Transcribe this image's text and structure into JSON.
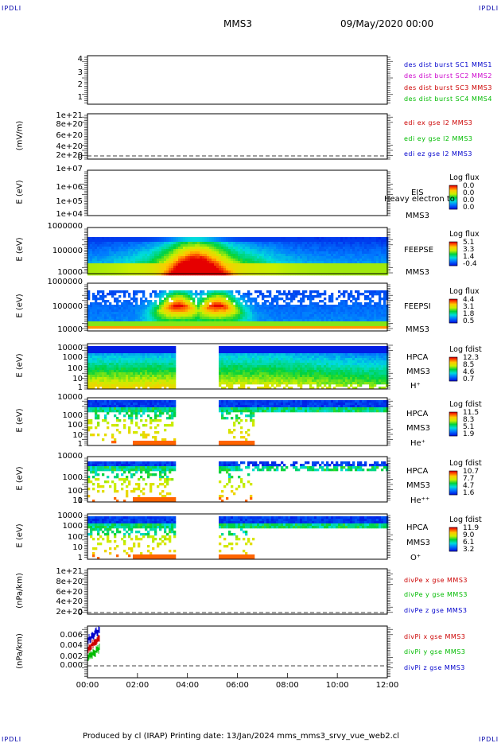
{
  "corners": {
    "tl": "IPDLI",
    "tr": "IPDLI",
    "bl": "IPDLI",
    "br": "IPDLI"
  },
  "header": {
    "title": "MMS3",
    "date": "09/May/2020 00:00"
  },
  "footer": {
    "text": "Produced by cl (IRAP)   Printing date: 13/Jan/2024   mms_mms3_srvy_vue_web2.cl"
  },
  "chart_data": [
    {
      "type": "line",
      "ylabel": "",
      "yticks": [
        "4",
        "3",
        "2",
        "1"
      ],
      "series": [
        {
          "name": "des dist burst SC1 MMS1",
          "color": "#0000cc",
          "values": []
        },
        {
          "name": "des dist burst SC2 MMS2",
          "color": "#cc00cc",
          "values": []
        },
        {
          "name": "des dist burst SC3 MMS3",
          "color": "#cc0000",
          "values": []
        },
        {
          "name": "des dist burst SC4 MMS4",
          "color": "#00bb00",
          "values": []
        }
      ]
    },
    {
      "type": "line",
      "ylabel": "(mV/m)",
      "yticks": [
        "1e+21",
        "8e+20",
        "6e+20",
        "4e+20",
        "2e+20",
        "0"
      ],
      "series": [
        {
          "name": "edi ex gse l2 MMS3",
          "color": "#cc0000",
          "values": []
        },
        {
          "name": "edi ey gse l2 MMS3",
          "color": "#00bb00",
          "values": []
        },
        {
          "name": "edi ez gse l2 MMS3",
          "color": "#0000cc",
          "values": []
        }
      ]
    },
    {
      "type": "heatmap",
      "ylabel": "E (eV)",
      "yticks": [
        "1e+07",
        "1e+06",
        "1e+05",
        "1e+04"
      ],
      "side": [
        "EIS",
        "Heavy electron to",
        "MMS3"
      ],
      "cb_title": "Log flux",
      "cb_values": [
        "0.0",
        "0.0",
        "0.0",
        "0.0"
      ]
    },
    {
      "type": "heatmap",
      "ylabel": "E (eV)",
      "yticks": [
        "1000000",
        "100000",
        "10000"
      ],
      "side": [
        "FEEPSE",
        "MMS3"
      ],
      "cb_title": "Log flux",
      "cb_values": [
        "5.1",
        "3.3",
        "1.4",
        "-0.4"
      ]
    },
    {
      "type": "heatmap",
      "ylabel": "E (eV)",
      "yticks": [
        "1000000",
        "100000",
        "10000"
      ],
      "side": [
        "FEEPSI",
        "MMS3"
      ],
      "cb_title": "Log flux",
      "cb_values": [
        "4.4",
        "3.1",
        "1.8",
        "0.5"
      ]
    },
    {
      "type": "heatmap",
      "ylabel": "E (eV)",
      "yticks": [
        "10000",
        "1000",
        "100",
        "10",
        "1"
      ],
      "side": [
        "HPCA",
        "MMS3",
        "H⁺"
      ],
      "cb_title": "Log fdist",
      "cb_values": [
        "12.3",
        "8.5",
        "4.6",
        "0.7"
      ]
    },
    {
      "type": "heatmap",
      "ylabel": "E (eV)",
      "yticks": [
        "10000",
        "1000",
        "100",
        "10",
        "1"
      ],
      "side": [
        "HPCA",
        "MMS3",
        "He⁺"
      ],
      "cb_title": "Log fdist",
      "cb_values": [
        "11.5",
        "8.3",
        "5.1",
        "1.9"
      ]
    },
    {
      "type": "heatmap",
      "ylabel": "E (eV)",
      "yticks": [
        "10000",
        "1000",
        "100",
        "10",
        "1"
      ],
      "side": [
        "HPCA",
        "MMS3",
        "He⁺⁺"
      ],
      "cb_title": "Log fdist",
      "cb_values": [
        "10.7",
        "7.7",
        "4.7",
        "1.6"
      ]
    },
    {
      "type": "heatmap",
      "ylabel": "E (eV)",
      "yticks": [
        "10000",
        "1000",
        "100",
        "10",
        "1"
      ],
      "side": [
        "HPCA",
        "MMS3",
        "O⁺"
      ],
      "cb_title": "Log fdist",
      "cb_values": [
        "11.9",
        "9.0",
        "6.1",
        "3.2"
      ]
    },
    {
      "type": "line",
      "ylabel": "(nPa/km)",
      "yticks": [
        "1e+21",
        "8e+20",
        "6e+20",
        "4e+20",
        "2e+20",
        "0"
      ],
      "series": [
        {
          "name": "divPe x gse MMS3",
          "color": "#cc0000",
          "values": []
        },
        {
          "name": "divPe y gse MMS3",
          "color": "#00bb00",
          "values": []
        },
        {
          "name": "divPe z gse MMS3",
          "color": "#0000cc",
          "values": []
        }
      ]
    },
    {
      "type": "line",
      "ylabel": "(nPa/km)",
      "yticks": [
        "0.006",
        "0.004",
        "0.002",
        "0.000"
      ],
      "series": [
        {
          "name": "divPi x gse MMS3",
          "color": "#cc0000",
          "values": []
        },
        {
          "name": "divPi y gse MMS3",
          "color": "#00bb00",
          "values": []
        },
        {
          "name": "divPi z gse MMS3",
          "color": "#0000cc",
          "values": []
        }
      ]
    }
  ],
  "xaxis": {
    "ticks": [
      "00:00",
      "02:00",
      "04:00",
      "06:00",
      "08:00",
      "10:00",
      "12:00"
    ]
  }
}
